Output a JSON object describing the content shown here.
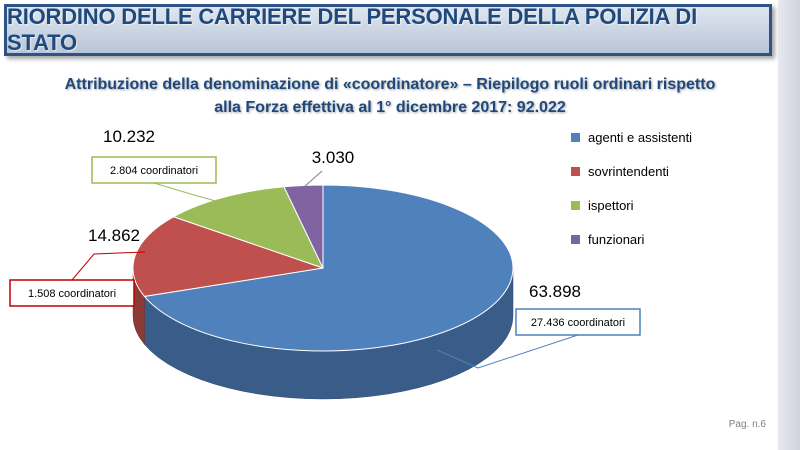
{
  "header": {
    "title": "RIORDINO DELLE CARRIERE DEL PERSONALE DELLA POLIZIA DI STATO"
  },
  "subtitle": {
    "line1": "Attribuzione della denominazione di «coordinatore» – Riepilogo ruoli ordinari  rispetto",
    "line2": "alla Forza effettiva al 1° dicembre 2017: 92.022"
  },
  "footer": {
    "page": "Pag. n.6"
  },
  "chart_data": {
    "type": "pie",
    "style": "3d",
    "categories": [
      "agenti e assistenti",
      "sovrintendenti",
      "ispettori",
      "funzionari"
    ],
    "values": [
      63898,
      14862,
      10232,
      3030
    ],
    "value_labels": [
      "63.898",
      "14.862",
      "10.232",
      "3.030"
    ],
    "colors": [
      "#4f81bd",
      "#c0504d",
      "#9bbb59",
      "#8064a2"
    ],
    "coordinatori": [
      "27.436 coordinatori",
      "1.508 coordinatori",
      "2.804 coordinatori",
      ""
    ],
    "callout_colors": [
      "#4f81bd",
      "#c00000",
      "#9bbb59",
      ""
    ],
    "legend_position": "right"
  }
}
